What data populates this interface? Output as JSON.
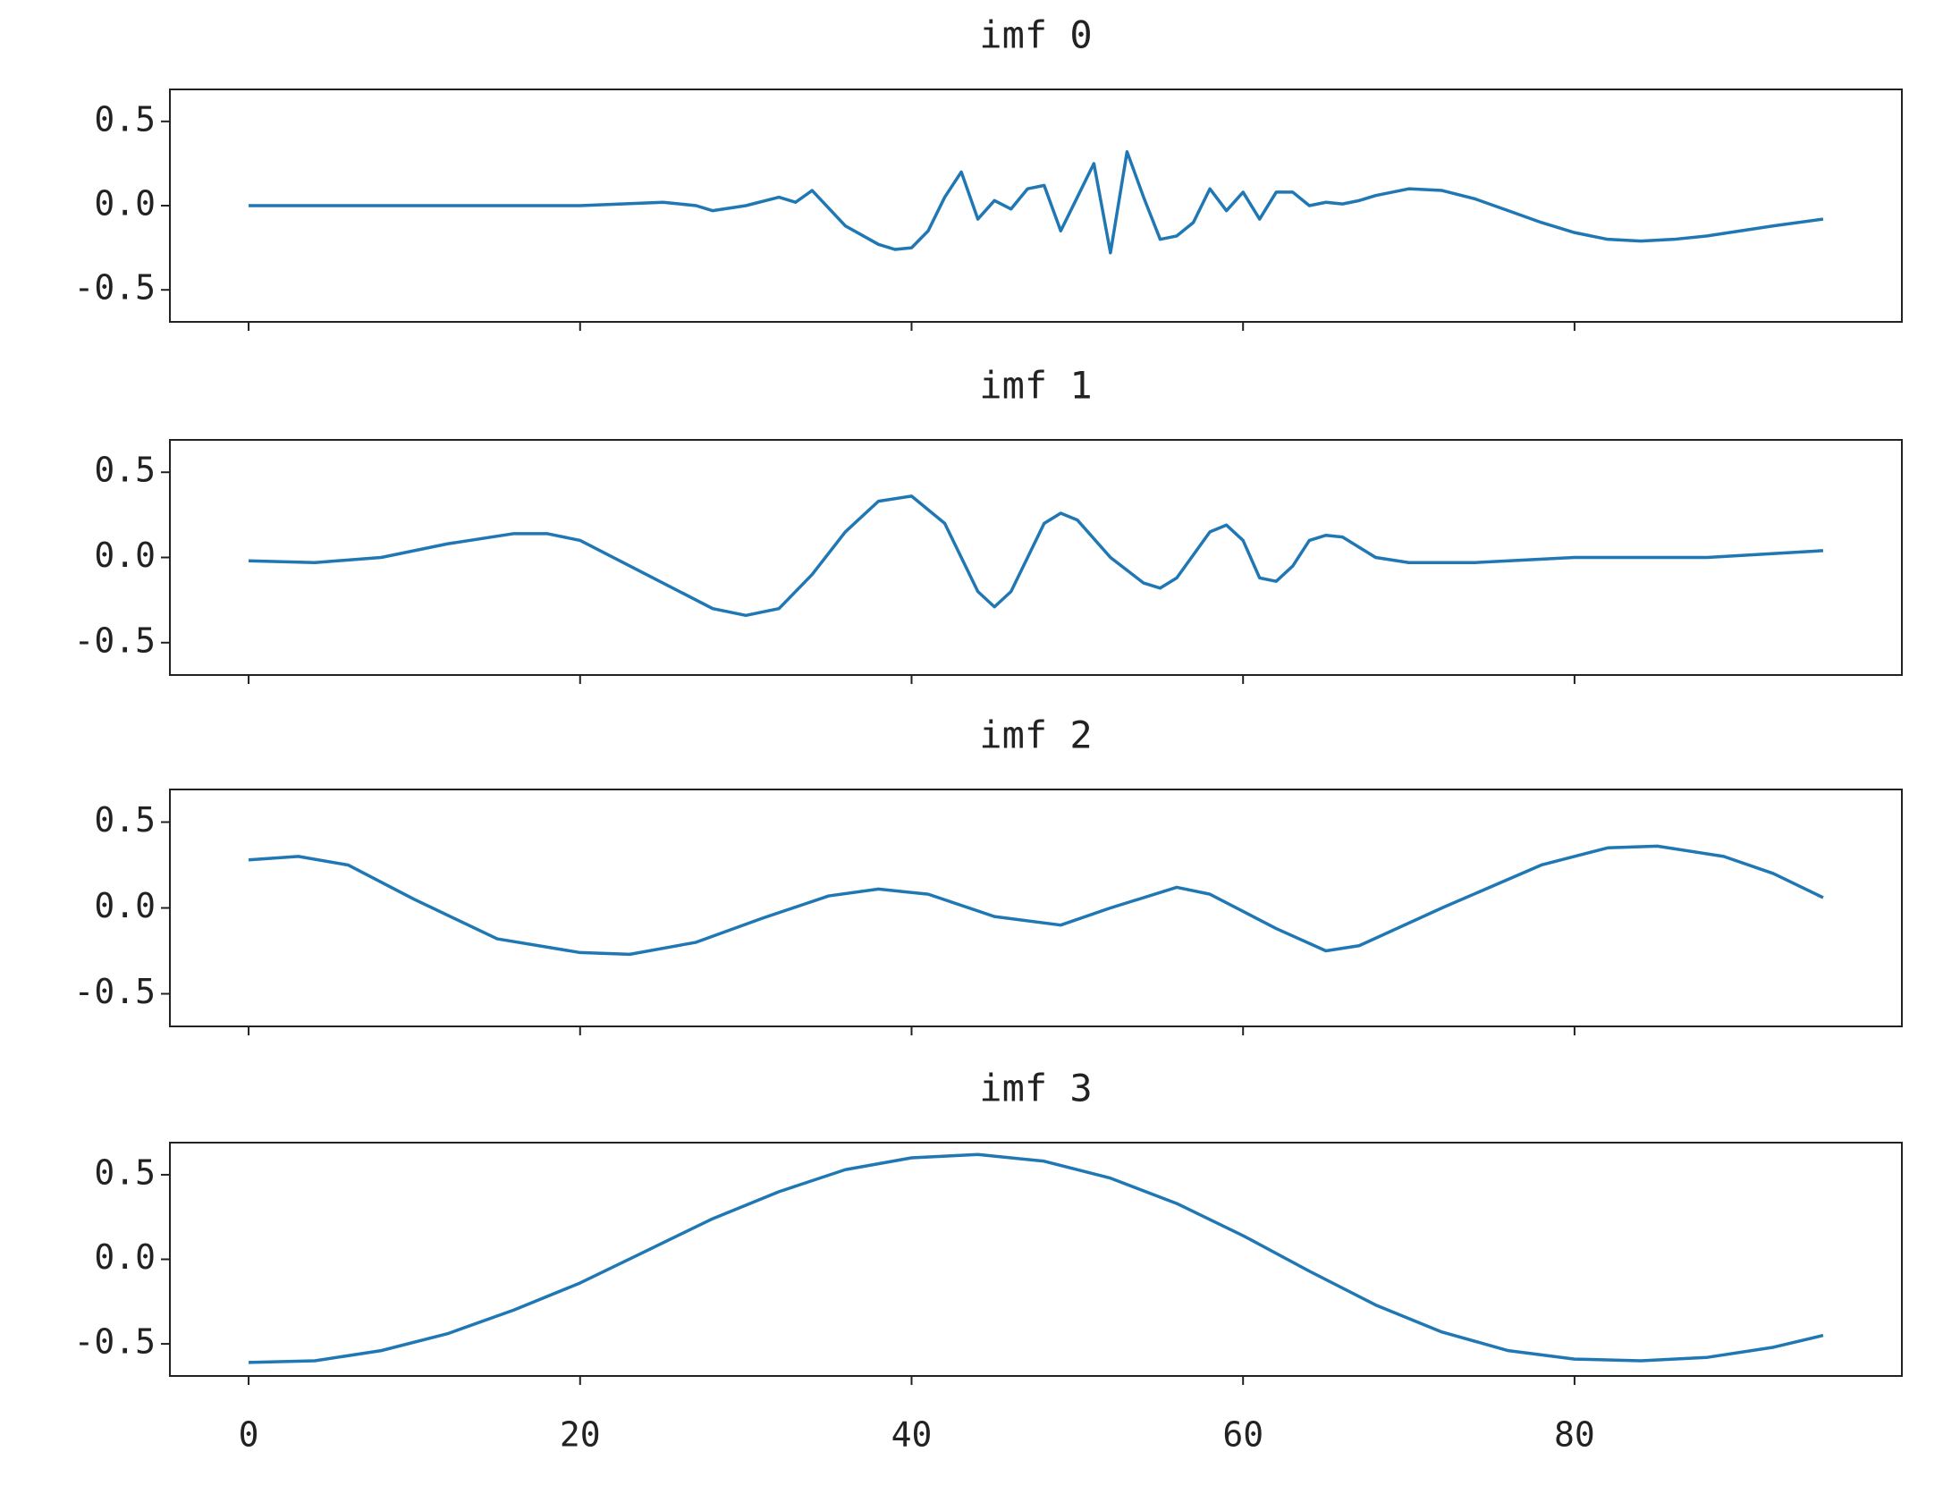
{
  "chart_data": [
    {
      "type": "line",
      "title": "imf 0",
      "color": "#1f77b4",
      "x": [
        0,
        10,
        20,
        25,
        27,
        28,
        30,
        32,
        33,
        34,
        36,
        38,
        39,
        40,
        41,
        42,
        43,
        44,
        45,
        46,
        47,
        48,
        49,
        50,
        51,
        52,
        53,
        54,
        55,
        56,
        57,
        58,
        59,
        60,
        61,
        62,
        63,
        64,
        65,
        66,
        67,
        68,
        70,
        72,
        74,
        76,
        78,
        80,
        82,
        84,
        86,
        88,
        90,
        92,
        95
      ],
      "values": [
        0.0,
        0.0,
        0.0,
        0.02,
        0.0,
        -0.03,
        0.0,
        0.05,
        0.02,
        0.09,
        -0.12,
        -0.23,
        -0.26,
        -0.25,
        -0.15,
        0.05,
        0.2,
        -0.08,
        0.03,
        -0.02,
        0.1,
        0.12,
        -0.15,
        0.05,
        0.25,
        -0.28,
        0.32,
        0.05,
        -0.2,
        -0.18,
        -0.1,
        0.1,
        -0.03,
        0.08,
        -0.08,
        0.08,
        0.08,
        0.0,
        0.02,
        0.01,
        0.03,
        0.06,
        0.1,
        0.09,
        0.04,
        -0.03,
        -0.1,
        -0.16,
        -0.2,
        -0.21,
        -0.2,
        -0.18,
        -0.15,
        -0.12,
        -0.08
      ],
      "ylim": [
        -0.69,
        0.69
      ],
      "yticks": [
        -0.5,
        {
          "value": 0,
          "label": "0.0"
        },
        0.5
      ]
    },
    {
      "type": "line",
      "title": "imf 1",
      "color": "#1f77b4",
      "x": [
        0,
        4,
        8,
        12,
        16,
        18,
        20,
        24,
        28,
        30,
        32,
        34,
        36,
        38,
        40,
        42,
        44,
        45,
        46,
        48,
        49,
        50,
        52,
        54,
        55,
        56,
        58,
        59,
        60,
        61,
        62,
        63,
        64,
        65,
        66,
        68,
        70,
        74,
        80,
        88,
        95
      ],
      "values": [
        -0.02,
        -0.03,
        0.0,
        0.08,
        0.14,
        0.14,
        0.1,
        -0.1,
        -0.3,
        -0.34,
        -0.3,
        -0.1,
        0.15,
        0.33,
        0.36,
        0.2,
        -0.2,
        -0.29,
        -0.2,
        0.2,
        0.26,
        0.22,
        0.0,
        -0.15,
        -0.18,
        -0.12,
        0.15,
        0.19,
        0.1,
        -0.12,
        -0.14,
        -0.05,
        0.1,
        0.13,
        0.12,
        0.0,
        -0.03,
        -0.03,
        0.0,
        0.0,
        0.04
      ],
      "ylim": [
        -0.69,
        0.69
      ],
      "yticks": [
        -0.5,
        {
          "value": 0,
          "label": "0.0"
        },
        0.5
      ]
    },
    {
      "type": "line",
      "title": "imf 2",
      "color": "#1f77b4",
      "x": [
        0,
        3,
        6,
        10,
        15,
        20,
        23,
        27,
        31,
        35,
        38,
        41,
        45,
        49,
        52,
        56,
        58,
        62,
        65,
        67,
        72,
        78,
        82,
        85,
        89,
        92,
        95
      ],
      "values": [
        0.28,
        0.3,
        0.25,
        0.05,
        -0.18,
        -0.26,
        -0.27,
        -0.2,
        -0.06,
        0.07,
        0.11,
        0.08,
        -0.05,
        -0.1,
        0.0,
        0.12,
        0.08,
        -0.12,
        -0.25,
        -0.22,
        0.0,
        0.25,
        0.35,
        0.36,
        0.3,
        0.2,
        0.06
      ],
      "ylim": [
        -0.69,
        0.69
      ],
      "yticks": [
        -0.5,
        {
          "value": 0,
          "label": "0.0"
        },
        0.5
      ]
    },
    {
      "type": "line",
      "title": "imf 3",
      "color": "#1f77b4",
      "x": [
        0,
        4,
        8,
        12,
        16,
        20,
        24,
        28,
        32,
        36,
        40,
        44,
        48,
        52,
        56,
        60,
        64,
        68,
        72,
        76,
        80,
        84,
        88,
        92,
        95
      ],
      "values": [
        -0.61,
        -0.6,
        -0.54,
        -0.44,
        -0.3,
        -0.14,
        0.05,
        0.24,
        0.4,
        0.53,
        0.6,
        0.62,
        0.58,
        0.48,
        0.33,
        0.14,
        -0.07,
        -0.27,
        -0.43,
        -0.54,
        -0.59,
        -0.6,
        -0.58,
        -0.52,
        -0.45
      ],
      "ylim": [
        -0.69,
        0.69
      ],
      "yticks": [
        -0.5,
        {
          "value": 0,
          "label": "0.0"
        },
        0.5
      ],
      "xlim": [
        -4.75,
        99.75
      ],
      "xticks": [
        0,
        20,
        40,
        60,
        80
      ]
    }
  ]
}
